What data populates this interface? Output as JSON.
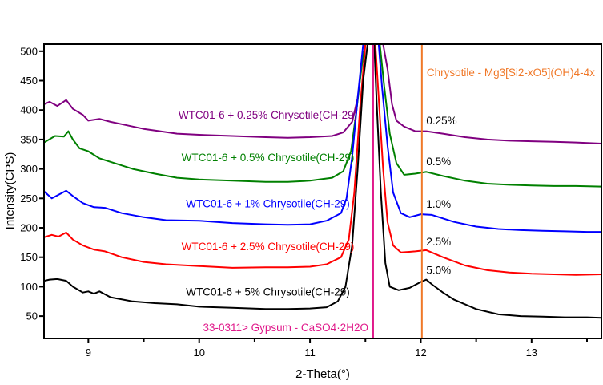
{
  "chart_data": {
    "type": "line",
    "title": "",
    "xlabel": "2-Theta(°)",
    "ylabel": "Intensity(CPS)",
    "xlim": [
      8.6,
      13.63
    ],
    "ylim": [
      12,
      512
    ],
    "x_ticks": [
      9,
      10,
      11,
      12,
      13
    ],
    "x_minor_ticks": [
      9.5,
      10.5,
      11.5,
      12.5,
      13.5
    ],
    "y_ticks": [
      50,
      100,
      150,
      200,
      250,
      300,
      350,
      400,
      450,
      500
    ],
    "grid": false,
    "legend": "inline labels next to curves",
    "series": [
      {
        "name": "WTC01-6 + 0.25% Chrysotile(CH-29)",
        "short_label": "0.25%",
        "color": "#800080",
        "points": [
          [
            8.6,
            410
          ],
          [
            8.65,
            414
          ],
          [
            8.72,
            407
          ],
          [
            8.8,
            417
          ],
          [
            8.86,
            402
          ],
          [
            8.95,
            392
          ],
          [
            9.0,
            382
          ],
          [
            9.1,
            385
          ],
          [
            9.2,
            380
          ],
          [
            9.3,
            376
          ],
          [
            9.5,
            368
          ],
          [
            9.8,
            360
          ],
          [
            10.0,
            358
          ],
          [
            10.3,
            356
          ],
          [
            10.6,
            354
          ],
          [
            10.8,
            353
          ],
          [
            11.0,
            354
          ],
          [
            11.2,
            356
          ],
          [
            11.3,
            362
          ],
          [
            11.38,
            380
          ],
          [
            11.43,
            420
          ],
          [
            11.47,
            480
          ],
          [
            11.5,
            512
          ],
          [
            11.66,
            512
          ],
          [
            11.7,
            470
          ],
          [
            11.74,
            410
          ],
          [
            11.78,
            382
          ],
          [
            11.85,
            372
          ],
          [
            11.95,
            364
          ],
          [
            12.05,
            364
          ],
          [
            12.2,
            360
          ],
          [
            12.4,
            354
          ],
          [
            12.6,
            350
          ],
          [
            12.8,
            348
          ],
          [
            13.0,
            347
          ],
          [
            13.2,
            346
          ],
          [
            13.4,
            345
          ],
          [
            13.63,
            343
          ]
        ]
      },
      {
        "name": "WTC01-6 + 0.5% Chrysotile(CH-29)",
        "short_label": "0.5%",
        "color": "#008000",
        "points": [
          [
            8.6,
            345
          ],
          [
            8.7,
            356
          ],
          [
            8.78,
            355
          ],
          [
            8.82,
            364
          ],
          [
            8.86,
            350
          ],
          [
            8.92,
            335
          ],
          [
            9.0,
            330
          ],
          [
            9.1,
            318
          ],
          [
            9.2,
            312
          ],
          [
            9.4,
            300
          ],
          [
            9.6,
            292
          ],
          [
            9.8,
            285
          ],
          [
            10.0,
            282
          ],
          [
            10.3,
            280
          ],
          [
            10.6,
            278
          ],
          [
            10.8,
            278
          ],
          [
            11.0,
            280
          ],
          [
            11.2,
            285
          ],
          [
            11.3,
            296
          ],
          [
            11.37,
            330
          ],
          [
            11.42,
            400
          ],
          [
            11.47,
            480
          ],
          [
            11.5,
            512
          ],
          [
            11.63,
            512
          ],
          [
            11.67,
            440
          ],
          [
            11.72,
            360
          ],
          [
            11.78,
            310
          ],
          [
            11.85,
            290
          ],
          [
            11.95,
            292
          ],
          [
            12.05,
            295
          ],
          [
            12.2,
            288
          ],
          [
            12.4,
            280
          ],
          [
            12.6,
            275
          ],
          [
            12.8,
            273
          ],
          [
            13.0,
            272
          ],
          [
            13.2,
            271
          ],
          [
            13.4,
            271
          ],
          [
            13.63,
            270
          ]
        ]
      },
      {
        "name": "WTC01-6 + 1% Chrysotile(CH-29)",
        "short_label": "1.0%",
        "color": "#0000ff",
        "points": [
          [
            8.6,
            262
          ],
          [
            8.67,
            250
          ],
          [
            8.73,
            256
          ],
          [
            8.8,
            263
          ],
          [
            8.86,
            254
          ],
          [
            8.95,
            242
          ],
          [
            9.05,
            235
          ],
          [
            9.15,
            234
          ],
          [
            9.3,
            225
          ],
          [
            9.5,
            218
          ],
          [
            9.7,
            213
          ],
          [
            10.0,
            212
          ],
          [
            10.3,
            208
          ],
          [
            10.6,
            206
          ],
          [
            10.8,
            205
          ],
          [
            11.0,
            206
          ],
          [
            11.15,
            212
          ],
          [
            11.28,
            225
          ],
          [
            11.33,
            250
          ],
          [
            11.38,
            320
          ],
          [
            11.43,
            420
          ],
          [
            11.48,
            512
          ],
          [
            11.62,
            512
          ],
          [
            11.65,
            440
          ],
          [
            11.7,
            340
          ],
          [
            11.75,
            260
          ],
          [
            11.82,
            225
          ],
          [
            11.9,
            218
          ],
          [
            12.0,
            223
          ],
          [
            12.1,
            222
          ],
          [
            12.3,
            210
          ],
          [
            12.5,
            202
          ],
          [
            12.7,
            198
          ],
          [
            12.9,
            196
          ],
          [
            13.1,
            195
          ],
          [
            13.3,
            194
          ],
          [
            13.5,
            193
          ],
          [
            13.63,
            193
          ]
        ]
      },
      {
        "name": "WTC01-6 + 2.5% Chrysotile(CH-29)",
        "short_label": "2.5%",
        "color": "#ff0000",
        "points": [
          [
            8.6,
            184
          ],
          [
            8.67,
            188
          ],
          [
            8.73,
            185
          ],
          [
            8.8,
            192
          ],
          [
            8.86,
            180
          ],
          [
            8.95,
            170
          ],
          [
            9.05,
            163
          ],
          [
            9.15,
            160
          ],
          [
            9.3,
            150
          ],
          [
            9.5,
            142
          ],
          [
            9.7,
            138
          ],
          [
            10.0,
            135
          ],
          [
            10.3,
            132
          ],
          [
            10.6,
            133
          ],
          [
            10.8,
            133
          ],
          [
            11.0,
            134
          ],
          [
            11.15,
            138
          ],
          [
            11.28,
            150
          ],
          [
            11.35,
            180
          ],
          [
            11.4,
            260
          ],
          [
            11.45,
            400
          ],
          [
            11.5,
            512
          ],
          [
            11.59,
            512
          ],
          [
            11.62,
            420
          ],
          [
            11.66,
            300
          ],
          [
            11.7,
            210
          ],
          [
            11.75,
            170
          ],
          [
            11.82,
            158
          ],
          [
            11.95,
            160
          ],
          [
            12.05,
            162
          ],
          [
            12.2,
            150
          ],
          [
            12.4,
            136
          ],
          [
            12.6,
            128
          ],
          [
            12.8,
            124
          ],
          [
            13.0,
            122
          ],
          [
            13.2,
            121
          ],
          [
            13.4,
            120
          ],
          [
            13.63,
            121
          ]
        ]
      },
      {
        "name": "WTC01-6 + 5% Chrysotile(CH-29)",
        "short_label": "5.0%",
        "color": "#000000",
        "points": [
          [
            8.6,
            110
          ],
          [
            8.65,
            112
          ],
          [
            8.72,
            113
          ],
          [
            8.8,
            110
          ],
          [
            8.86,
            100
          ],
          [
            8.95,
            90
          ],
          [
            9.0,
            92
          ],
          [
            9.05,
            88
          ],
          [
            9.1,
            92
          ],
          [
            9.2,
            82
          ],
          [
            9.4,
            75
          ],
          [
            9.6,
            72
          ],
          [
            9.8,
            70
          ],
          [
            10.0,
            66
          ],
          [
            10.3,
            64
          ],
          [
            10.6,
            62
          ],
          [
            10.8,
            62
          ],
          [
            11.0,
            63
          ],
          [
            11.15,
            65
          ],
          [
            11.25,
            75
          ],
          [
            11.32,
            100
          ],
          [
            11.38,
            170
          ],
          [
            11.43,
            300
          ],
          [
            11.48,
            450
          ],
          [
            11.52,
            512
          ],
          [
            11.58,
            512
          ],
          [
            11.6,
            420
          ],
          [
            11.64,
            260
          ],
          [
            11.68,
            140
          ],
          [
            11.72,
            100
          ],
          [
            11.8,
            94
          ],
          [
            11.9,
            98
          ],
          [
            12.0,
            108
          ],
          [
            12.05,
            112
          ],
          [
            12.1,
            104
          ],
          [
            12.2,
            90
          ],
          [
            12.3,
            78
          ],
          [
            12.5,
            62
          ],
          [
            12.7,
            53
          ],
          [
            12.9,
            50
          ],
          [
            13.1,
            49
          ],
          [
            13.3,
            48
          ],
          [
            13.5,
            48
          ],
          [
            13.63,
            47
          ]
        ]
      }
    ],
    "reference_lines": [
      {
        "label": "33-0311> Gypsum - CaSO4·2H2O",
        "x": 11.57,
        "color": "#e0198a"
      },
      {
        "label": "Chrysotile - Mg3[Si2-xO5](OH)4-4x",
        "x": 12.01,
        "color": "#f07828"
      }
    ],
    "annotations": [
      {
        "text": "WTC01-6 + 0.25% Chrysotile(CH-29)",
        "series": 0,
        "x": 10.62,
        "y": 385
      },
      {
        "text": "WTC01-6 + 0.5% Chrysotile(CH-29)",
        "series": 1,
        "x": 10.62,
        "y": 313
      },
      {
        "text": "WTC01-6 + 1% Chrysotile(CH-29)",
        "series": 2,
        "x": 10.62,
        "y": 235
      },
      {
        "text": "WTC01-6 + 2.5% Chrysotile(CH-29)",
        "series": 3,
        "x": 10.62,
        "y": 162
      },
      {
        "text": "WTC01-6 + 5% Chrysotile(CH-29)",
        "series": 4,
        "x": 10.62,
        "y": 85
      },
      {
        "text": "0.25%",
        "series": 0,
        "x": 12.05,
        "y": 376
      },
      {
        "text": "0.5%",
        "series": 1,
        "x": 12.05,
        "y": 306
      },
      {
        "text": "1.0%",
        "series": 2,
        "x": 12.05,
        "y": 234
      },
      {
        "text": "2.5%",
        "series": 3,
        "x": 12.05,
        "y": 170
      },
      {
        "text": "5.0%",
        "series": 4,
        "x": 12.05,
        "y": 122
      }
    ]
  }
}
